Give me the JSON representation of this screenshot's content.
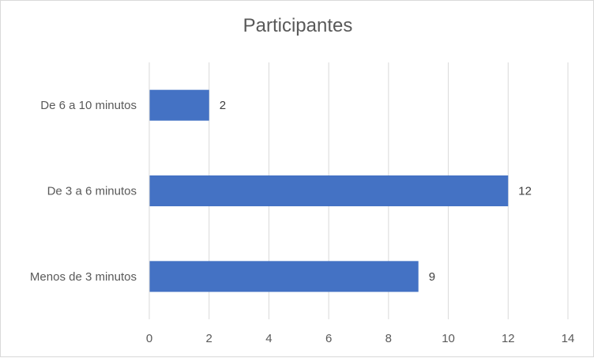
{
  "chart_data": {
    "type": "bar",
    "orientation": "horizontal",
    "title": "Participantes",
    "categories": [
      "De 6 a 10 minutos",
      "De 3 a 6 minutos",
      "Menos de 3 minutos"
    ],
    "values": [
      2,
      12,
      9
    ],
    "xlim": [
      0,
      14
    ],
    "x_ticks": [
      0,
      2,
      4,
      6,
      8,
      10,
      12,
      14
    ],
    "grid": true,
    "data_labels": true,
    "bar_color": "#4472c4",
    "grid_color": "#d9d9d9",
    "text_color": "#595959"
  }
}
